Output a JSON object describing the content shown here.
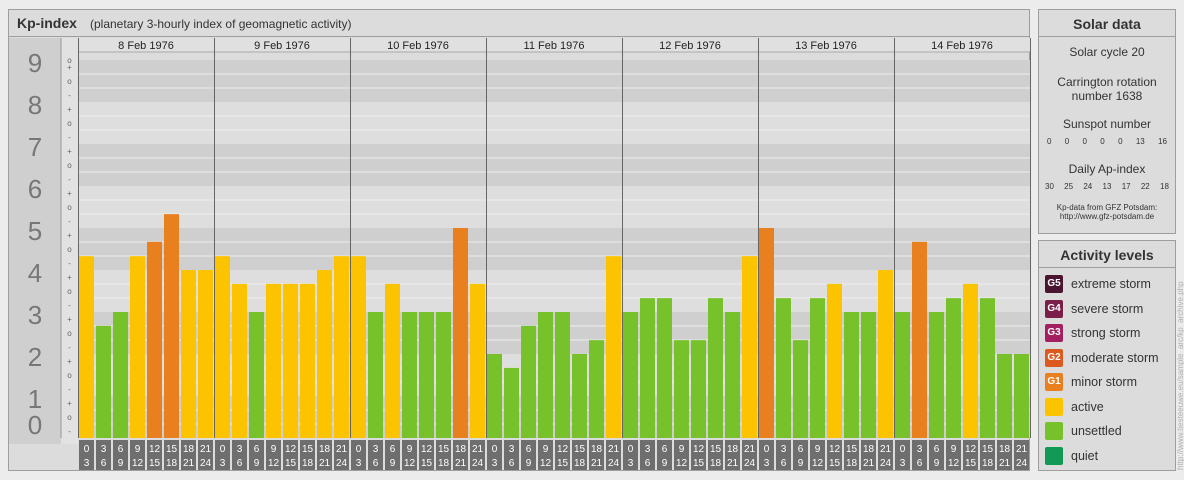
{
  "header": {
    "title": "Kp-index",
    "subtitle": "(planetary 3-hourly index of geomagnetic activity)"
  },
  "chart_data": {
    "type": "bar",
    "title": "Kp-index",
    "y_range": [
      0,
      9
    ],
    "y_ticks": [
      "0",
      "1",
      "2",
      "3",
      "4",
      "5",
      "6",
      "7",
      "8",
      "9"
    ],
    "sub_ticks": [
      "+",
      "o",
      "-"
    ],
    "days": [
      "8 Feb 1976",
      "9 Feb 1976",
      "10 Feb 1976",
      "11 Feb 1976",
      "12 Feb 1976",
      "13 Feb 1976",
      "14 Feb 1976"
    ],
    "interval_start": [
      "0",
      "3",
      "6",
      "9",
      "12",
      "15",
      "18",
      "21"
    ],
    "interval_end": [
      "3",
      "6",
      "9",
      "12",
      "15",
      "18",
      "21",
      "24"
    ],
    "values": [
      4.33,
      2.67,
      3.0,
      4.33,
      4.67,
      5.33,
      4.0,
      4.0,
      4.33,
      3.67,
      3.0,
      3.67,
      3.67,
      3.67,
      4.0,
      4.33,
      4.33,
      3.0,
      3.67,
      3.0,
      3.0,
      3.0,
      5.0,
      3.67,
      2.0,
      1.67,
      2.67,
      3.0,
      3.0,
      2.0,
      2.33,
      4.33,
      3.0,
      3.33,
      3.33,
      2.33,
      2.33,
      3.33,
      3.0,
      4.33,
      5.0,
      3.33,
      2.33,
      3.33,
      3.67,
      3.0,
      3.0,
      4.0,
      3.0,
      4.67,
      3.0,
      3.33,
      3.67,
      3.33,
      2.0,
      2.0
    ],
    "colors": {
      "quiet": "#119955",
      "unsettled": "#77c22a",
      "active": "#fcc400",
      "minor_storm": "#e8801f",
      "moderate_storm": "#dc5a1f",
      "strong_storm": "#a41f5f",
      "severe_storm": "#7a1f4a",
      "extreme_storm": "#4a1530"
    }
  },
  "solar": {
    "header": "Solar data",
    "cycle": "Solar cycle 20",
    "carrington_line1": "Carrington rotation",
    "carrington_line2": "number 1638",
    "sunspot_label": "Sunspot number",
    "sunspots": [
      "0",
      "0",
      "0",
      "0",
      "0",
      "13",
      "16"
    ],
    "ap_label": "Daily Ap-index",
    "ap": [
      "30",
      "25",
      "24",
      "13",
      "17",
      "22",
      "18"
    ],
    "source_line1": "Kp-data from GFZ Potsdam:",
    "source_line2": "http://www.gfz-potsdam.de"
  },
  "activity": {
    "header": "Activity levels",
    "levels": [
      {
        "code": "G5",
        "label": "extreme storm",
        "color": "#4a1530"
      },
      {
        "code": "G4",
        "label": "severe storm",
        "color": "#7a1f4a"
      },
      {
        "code": "G3",
        "label": "strong storm",
        "color": "#a41f5f"
      },
      {
        "code": "G2",
        "label": "moderate storm",
        "color": "#dc5a1f"
      },
      {
        "code": "G1",
        "label": "minor storm",
        "color": "#e8801f"
      },
      {
        "code": "",
        "label": "active",
        "color": "#fcc400"
      },
      {
        "code": "",
        "label": "unsettled",
        "color": "#77c22a"
      },
      {
        "code": "",
        "label": "quiet",
        "color": "#119955"
      }
    ]
  },
  "credit": "http://www.tiesteeuwe.eu/sample_arc/kp_archive.php"
}
